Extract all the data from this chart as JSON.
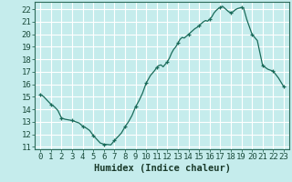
{
  "title": "",
  "xlabel": "Humidex (Indice chaleur)",
  "ylabel": "",
  "x_ticks": [
    0,
    1,
    2,
    3,
    4,
    5,
    6,
    7,
    8,
    9,
    10,
    11,
    12,
    13,
    14,
    15,
    16,
    17,
    18,
    19,
    20,
    21,
    22,
    23
  ],
  "x_tick_labels": [
    "0",
    "1",
    "2",
    "3",
    "4",
    "5",
    "6",
    "7",
    "8",
    "9",
    "10",
    "11",
    "12",
    "13",
    "14",
    "15",
    "16",
    "17",
    "18",
    "19",
    "20",
    "21",
    "22",
    "23"
  ],
  "ylim": [
    10.8,
    22.6
  ],
  "xlim": [
    -0.5,
    23.5
  ],
  "yticks": [
    11,
    12,
    13,
    14,
    15,
    16,
    17,
    18,
    19,
    20,
    21,
    22
  ],
  "background_color": "#c5ecec",
  "grid_color": "#ffffff",
  "line_color": "#1a6b5a",
  "marker_color": "#1a6b5a",
  "x_values": [
    0,
    0.33,
    0.66,
    1,
    1.33,
    1.66,
    2,
    2.33,
    2.66,
    3,
    3.33,
    3.66,
    4,
    4.33,
    4.66,
    5,
    5.33,
    5.66,
    6,
    6.33,
    6.66,
    7,
    7.33,
    7.66,
    8,
    8.33,
    8.66,
    9,
    9.33,
    9.66,
    10,
    10.2,
    10.4,
    10.6,
    10.8,
    11,
    11.2,
    11.4,
    11.6,
    11.8,
    12,
    12.2,
    12.4,
    12.6,
    12.8,
    13,
    13.2,
    13.4,
    13.6,
    13.8,
    14,
    14.2,
    14.4,
    14.6,
    14.8,
    15,
    15.2,
    15.4,
    15.6,
    15.8,
    16,
    16.2,
    16.4,
    16.6,
    16.8,
    17,
    17.2,
    17.4,
    17.6,
    17.8,
    18,
    18.2,
    18.4,
    18.6,
    18.8,
    19,
    19.2,
    19.5,
    20,
    20.5,
    21,
    21.5,
    22,
    22.5,
    23
  ],
  "y_values": [
    15.2,
    15.0,
    14.7,
    14.4,
    14.2,
    13.9,
    13.3,
    13.2,
    13.15,
    13.1,
    13.0,
    12.9,
    12.65,
    12.5,
    12.3,
    11.9,
    11.6,
    11.3,
    11.2,
    11.18,
    11.15,
    11.5,
    11.8,
    12.1,
    12.6,
    13.0,
    13.5,
    14.2,
    14.7,
    15.3,
    16.1,
    16.4,
    16.7,
    16.9,
    17.1,
    17.35,
    17.5,
    17.55,
    17.4,
    17.6,
    17.8,
    18.1,
    18.5,
    18.8,
    19.0,
    19.3,
    19.6,
    19.75,
    19.7,
    19.85,
    20.0,
    20.15,
    20.3,
    20.45,
    20.55,
    20.7,
    20.85,
    21.0,
    21.1,
    21.05,
    21.2,
    21.4,
    21.7,
    21.9,
    22.05,
    22.15,
    22.25,
    22.1,
    21.95,
    21.8,
    21.75,
    21.8,
    21.95,
    22.05,
    22.1,
    22.15,
    22.1,
    21.2,
    20.0,
    19.5,
    17.5,
    17.2,
    17.05,
    16.5,
    15.8
  ],
  "marker_x": [
    0,
    1,
    2,
    3,
    4,
    5,
    6,
    7,
    8,
    9,
    10,
    11,
    12,
    13,
    14,
    15,
    16,
    17,
    18,
    19,
    20,
    21,
    22,
    23
  ],
  "marker_y": [
    15.2,
    14.4,
    13.3,
    13.1,
    12.65,
    11.9,
    11.2,
    11.5,
    12.6,
    14.2,
    16.1,
    17.35,
    17.8,
    19.3,
    20.0,
    20.7,
    21.2,
    22.15,
    21.75,
    22.15,
    20.0,
    17.5,
    17.05,
    15.8
  ],
  "xlabel_fontsize": 7.5,
  "tick_fontsize": 6.5
}
